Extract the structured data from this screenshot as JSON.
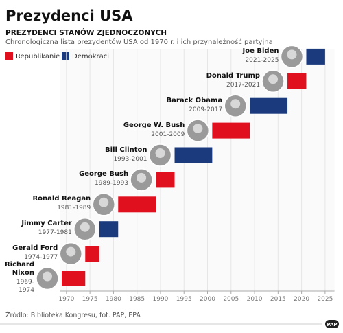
{
  "chart_data": {
    "type": "gantt",
    "title": "Prezydenci USA",
    "subtitle": "PREZYDENCI STANÓW ZJEDNOCZONYCH",
    "description": "Chronologiczna lista prezydentów USA od 1970 r. i ich przynależność partyjna",
    "series": [
      {
        "name": "Republikanie",
        "color": "#e0101e"
      },
      {
        "name": "Demokraci",
        "color": "#1b3a7d"
      }
    ],
    "presidents": [
      {
        "name": "Richard Nixon",
        "term": "1969-1974",
        "start": 1969,
        "end": 1974,
        "party": 0
      },
      {
        "name": "Gerald Ford",
        "term": "1974-1977",
        "start": 1974,
        "end": 1977,
        "party": 0
      },
      {
        "name": "Jimmy Carter",
        "term": "1977-1981",
        "start": 1977,
        "end": 1981,
        "party": 1
      },
      {
        "name": "Ronald Reagan",
        "term": "1981-1989",
        "start": 1981,
        "end": 1989,
        "party": 0
      },
      {
        "name": "George Bush",
        "term": "1989-1993",
        "start": 1989,
        "end": 1993,
        "party": 0
      },
      {
        "name": "Bill Clinton",
        "term": "1993-2001",
        "start": 1993,
        "end": 2001,
        "party": 1
      },
      {
        "name": "George W. Bush",
        "term": "2001-2009",
        "start": 2001,
        "end": 2009,
        "party": 0
      },
      {
        "name": "Barack Obama",
        "term": "2009-2017",
        "start": 2009,
        "end": 2017,
        "party": 1
      },
      {
        "name": "Donald Trump",
        "term": "2017-2021",
        "start": 2017,
        "end": 2021,
        "party": 0
      },
      {
        "name": "Joe Biden",
        "term": "2021-2025",
        "start": 2021,
        "end": 2025,
        "party": 1
      }
    ],
    "xlim": [
      1969,
      2027
    ],
    "xticks": [
      1970,
      1975,
      1980,
      1985,
      1990,
      1995,
      2000,
      2005,
      2010,
      2015,
      2020,
      2025
    ],
    "grid": true,
    "source": "Źródło: Biblioteka Kongresu, fot. PAP, EPA",
    "logo": "PAP"
  }
}
